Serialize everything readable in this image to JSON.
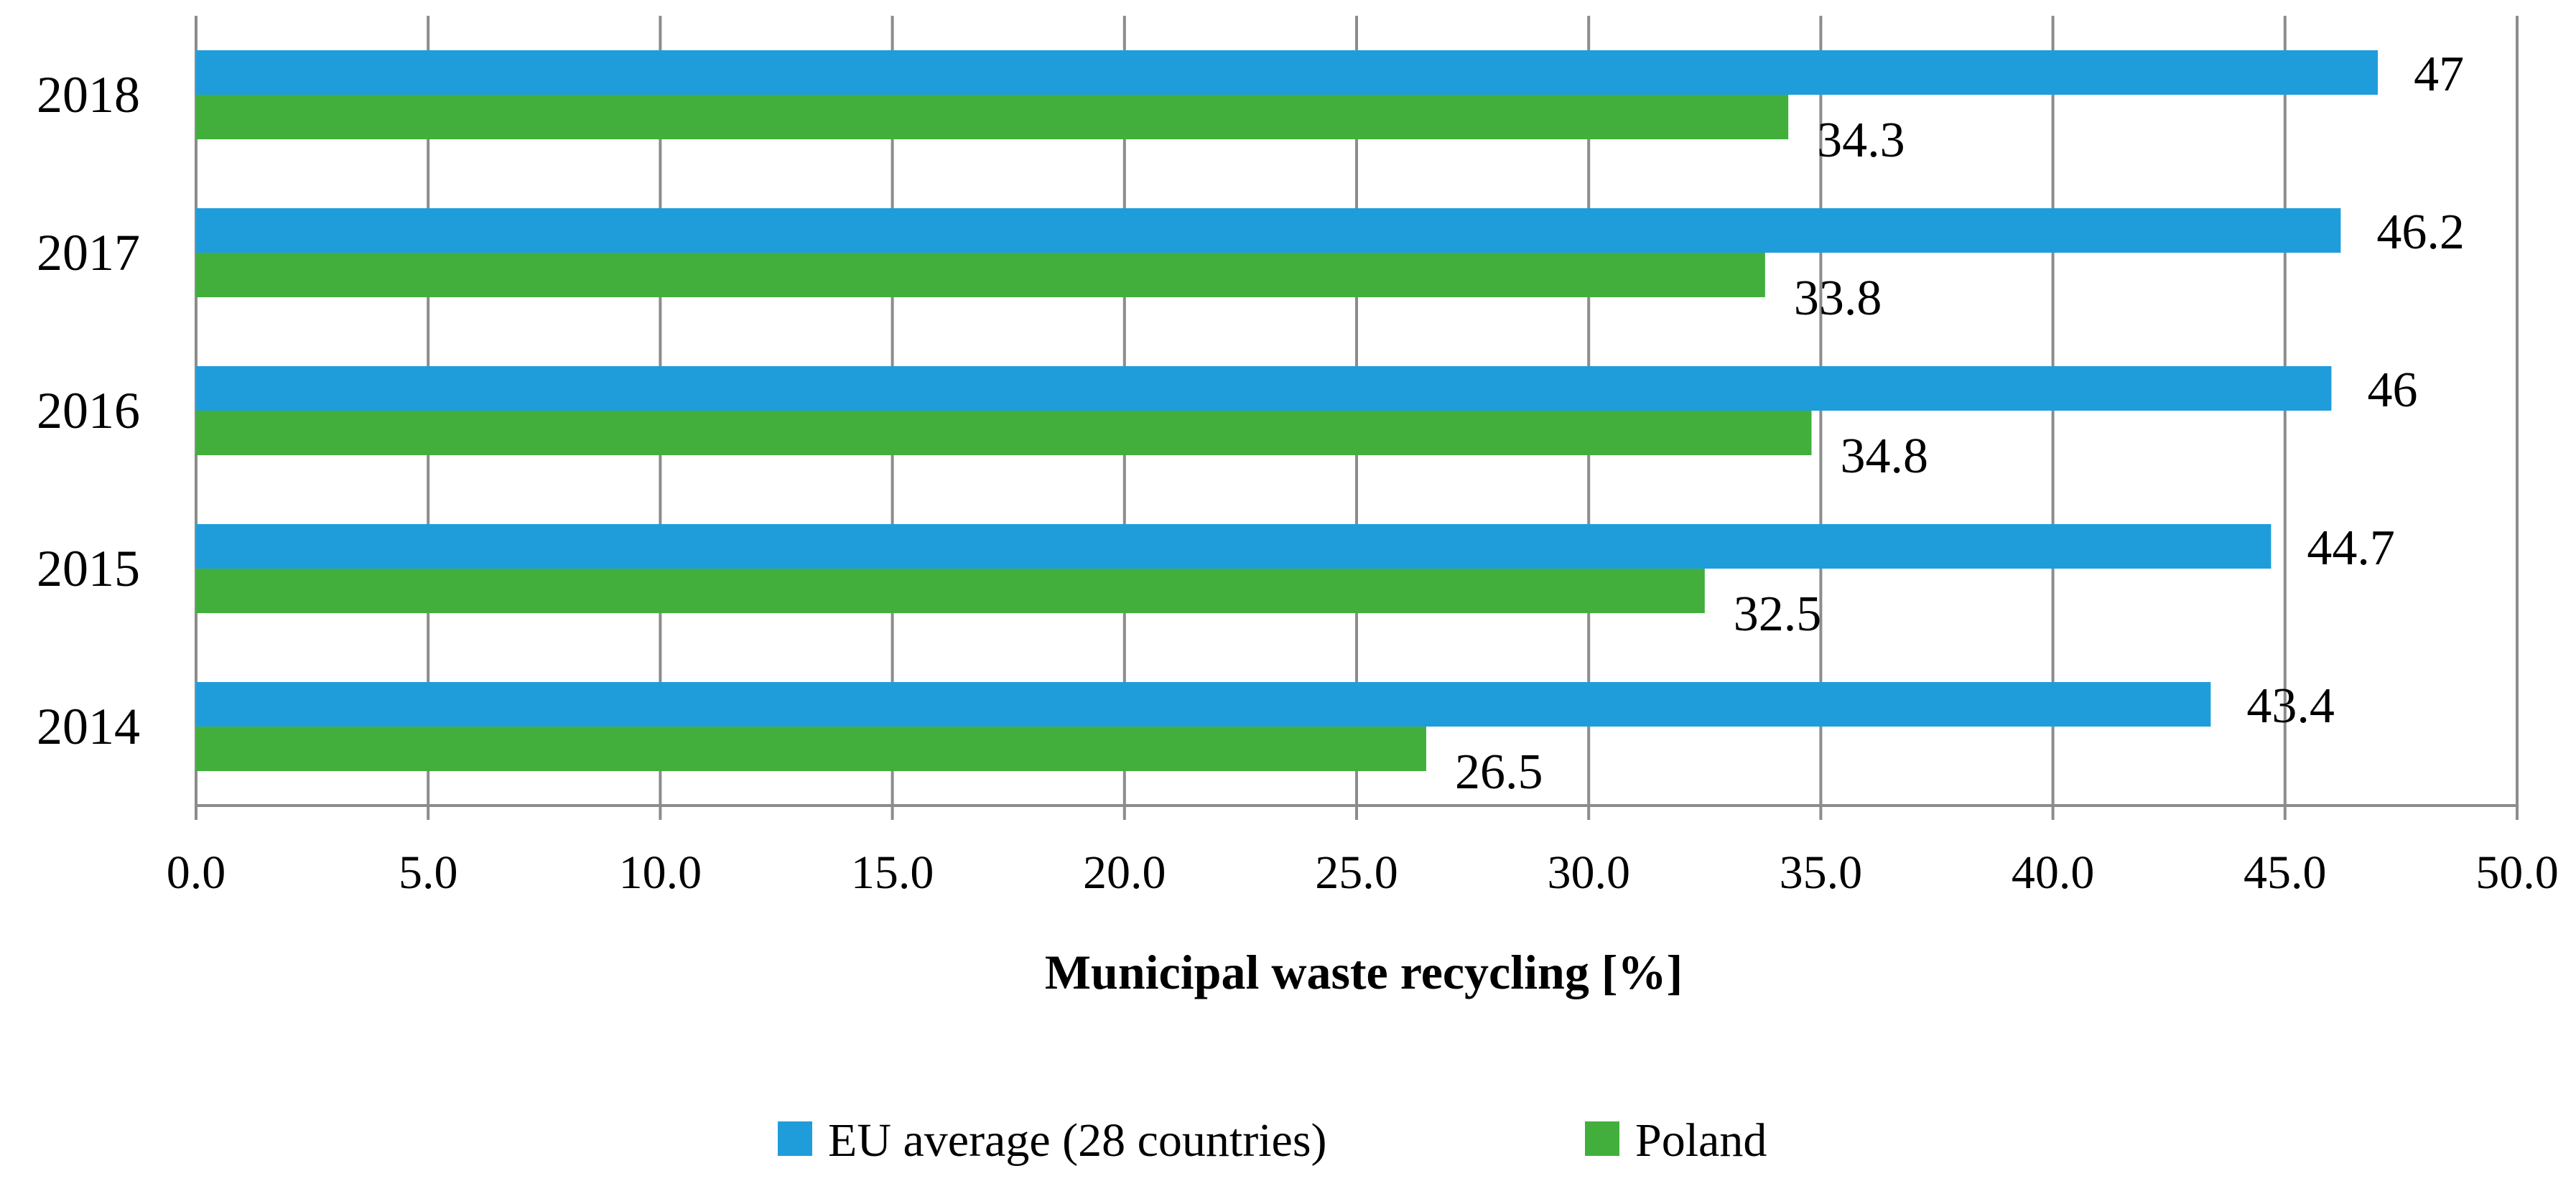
{
  "chart_data": {
    "type": "bar",
    "orientation": "horizontal",
    "categories": [
      "2014",
      "2015",
      "2016",
      "2017",
      "2018"
    ],
    "series": [
      {
        "name": "EU average (28 countries)",
        "color": "#1f9ddb",
        "values": [
          43.4,
          44.7,
          46,
          46.2,
          47
        ],
        "labels": [
          "43.4",
          "44.7",
          "46",
          "46.2",
          "47"
        ]
      },
      {
        "name": "Poland",
        "color": "#42af3c",
        "values": [
          26.5,
          32.5,
          34.8,
          33.8,
          34.3
        ],
        "labels": [
          "26.5",
          "32.5",
          "34.8",
          "33.8",
          "34.3"
        ]
      }
    ],
    "xlabel": "Municipal waste recycling [%]",
    "ylabel": "",
    "xlim": [
      0,
      50
    ],
    "xticks": [
      "0.0",
      "5.0",
      "10.0",
      "15.0",
      "20.0",
      "25.0",
      "30.0",
      "35.0",
      "40.0",
      "45.0",
      "50.0"
    ],
    "grid": "vertical",
    "legend": "bottom-center"
  }
}
